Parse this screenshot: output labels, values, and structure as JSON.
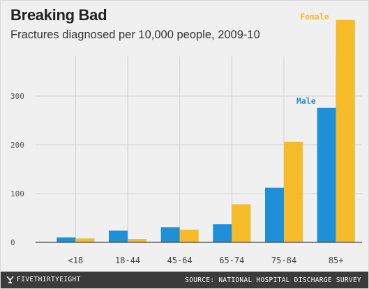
{
  "title": "Breaking Bad",
  "subtitle": "Fractures diagnosed per 10,000 people, 2009-10",
  "footer": {
    "brand": "FIVETHIRTYEIGHT",
    "source": "SOURCE: NATIONAL HOSPITAL DISCHARGE SURVEY"
  },
  "colors": {
    "male": "#1f8fd8",
    "female": "#f5bb28",
    "background": "#f0f0f0",
    "gridline": "#d2d2d2",
    "footer": "#3b3b3b"
  },
  "chart_data": {
    "type": "bar",
    "title": "Breaking Bad",
    "subtitle": "Fractures diagnosed per 10,000 people, 2009-10",
    "categories": [
      "<18",
      "18-44",
      "45-64",
      "65-74",
      "75-84",
      "85+"
    ],
    "series": [
      {
        "name": "Male",
        "values": [
          10,
          24,
          31,
          37,
          112,
          276
        ]
      },
      {
        "name": "Female",
        "values": [
          8,
          7,
          26,
          78,
          206,
          456
        ]
      }
    ],
    "yticks": [
      0,
      100,
      200,
      300
    ],
    "ylim": [
      0,
      460
    ],
    "grid": true,
    "legend": "direct labels above the 85+ bars"
  }
}
